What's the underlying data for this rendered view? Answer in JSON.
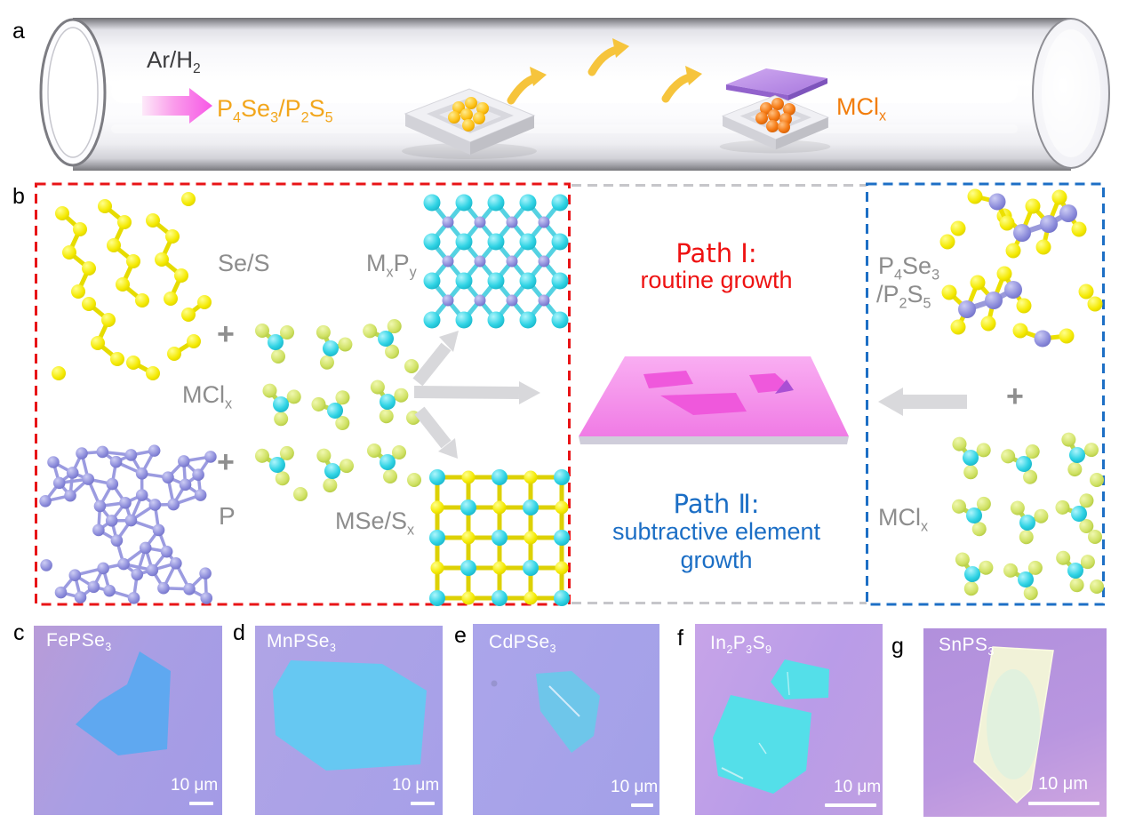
{
  "labels": {
    "a": "a",
    "b": "b"
  },
  "panel_a": {
    "gas": [
      [
        "Ar/H",
        0
      ],
      [
        "2",
        1
      ]
    ],
    "precursor": [
      [
        "P",
        0
      ],
      [
        "4",
        1
      ],
      [
        "Se",
        0
      ],
      [
        "3",
        1
      ],
      [
        "/P",
        0
      ],
      [
        "2",
        1
      ],
      [
        "S",
        0
      ],
      [
        "5",
        1
      ]
    ],
    "salt": [
      [
        "MCl",
        0
      ],
      [
        "x",
        1
      ]
    ]
  },
  "panel_b": {
    "left_box": {
      "se_s": "Se/S",
      "plus1": "+",
      "mclx": [
        [
          "MCl",
          0
        ],
        [
          "x",
          1
        ]
      ],
      "plus2": "+",
      "p": "P",
      "mxpy": [
        [
          "M",
          0
        ],
        [
          "x",
          1
        ],
        [
          "P",
          0
        ],
        [
          "y",
          1
        ]
      ],
      "msesx": [
        [
          "MSe/S",
          0
        ],
        [
          "x",
          1
        ]
      ]
    },
    "center": {
      "path1_title": "Path Ⅰ:",
      "path1_desc": "routine growth",
      "path2_title": "Path Ⅱ:",
      "path2_desc_line1": "subtractive element",
      "path2_desc_line2": "growth"
    },
    "right_box": {
      "p4se3": [
        [
          "P",
          0
        ],
        [
          "4",
          1
        ],
        [
          "Se",
          0
        ],
        [
          "3",
          1
        ]
      ],
      "p2s5": [
        [
          "/P",
          0
        ],
        [
          "2",
          1
        ],
        [
          "S",
          0
        ],
        [
          "5",
          1
        ]
      ],
      "plus": "+",
      "mclx": [
        [
          "MCl",
          0
        ],
        [
          "x",
          1
        ]
      ]
    }
  },
  "micrographs": [
    {
      "letter": "c",
      "name": [
        [
          "FePSe",
          0
        ],
        [
          "3",
          1
        ]
      ],
      "scale": "10 μm"
    },
    {
      "letter": "d",
      "name": [
        [
          "MnPSe",
          0
        ],
        [
          "3",
          1
        ]
      ],
      "scale": "10 μm"
    },
    {
      "letter": "e",
      "name": [
        [
          "CdPSe",
          0
        ],
        [
          "3",
          1
        ]
      ],
      "scale": "10 μm"
    },
    {
      "letter": "f",
      "name": [
        [
          "In",
          0
        ],
        [
          "2",
          1
        ],
        [
          "P",
          0
        ],
        [
          "3",
          1
        ],
        [
          "S",
          0
        ],
        [
          "9",
          1
        ]
      ],
      "scale": "10 μm"
    },
    {
      "letter": "g",
      "name": [
        [
          "SnPS",
          0
        ],
        [
          "3",
          1
        ]
      ],
      "scale": "10 μm"
    }
  ],
  "colors": {
    "path1_red": "#ee1212",
    "path2_blue": "#1b6ec5",
    "box_red_dash": "#e81417",
    "box_blue_dash": "#1d6fc5",
    "box_gray_dash": "#c6c6ca",
    "precursor_gold": "#f2a61c",
    "salt_orange": "#f27d0c",
    "label_gray": "#8d8d8d"
  }
}
